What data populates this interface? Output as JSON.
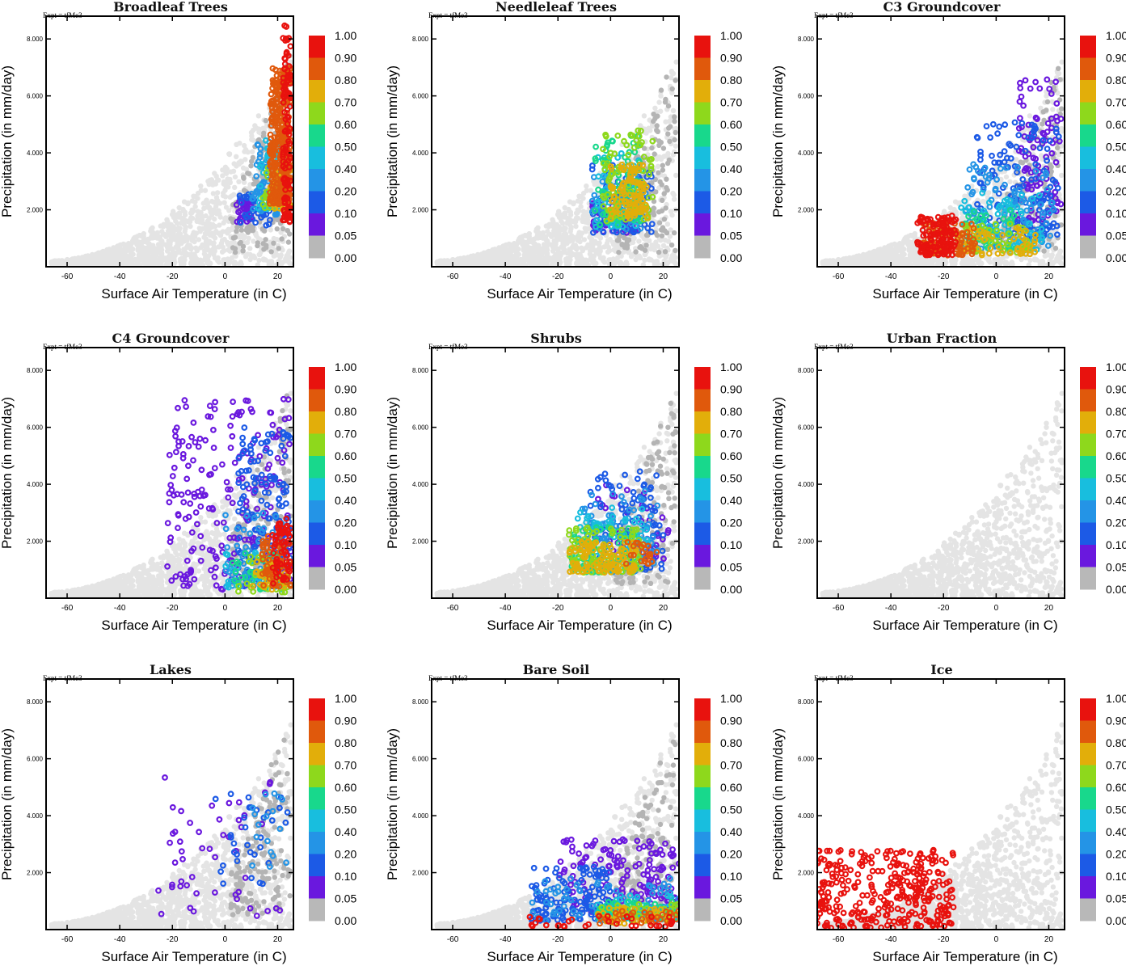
{
  "figure": {
    "expt_label": "Expt = tfMe3",
    "xlabel": "Surface Air Temperature (in C)",
    "ylabel": "Precipitation (in mm/day)",
    "x_ticks": [
      "-60",
      "-40",
      "-20",
      "0",
      "20"
    ],
    "x_tick_values": [
      -60,
      -40,
      -20,
      0,
      20
    ],
    "y_ticks": [
      "2.000",
      "4.000",
      "6.000",
      "8.000"
    ],
    "y_tick_values": [
      2,
      4,
      6,
      8
    ],
    "xlim": [
      -68,
      26
    ],
    "ylim": [
      0,
      8.8
    ],
    "colorbar": {
      "labels": [
        "1.00",
        "0.90",
        "0.80",
        "0.70",
        "0.60",
        "0.50",
        "0.40",
        "0.20",
        "0.10",
        "0.05",
        "0.00"
      ],
      "colors": [
        "#e8120e",
        "#e0590c",
        "#e2ae0a",
        "#8ed81c",
        "#18d88c",
        "#18bede",
        "#2494e6",
        "#1c5ae6",
        "#6a18de",
        "#b8b8b8"
      ],
      "background_point_color": "#e4e4e4"
    }
  },
  "chart_data": [
    {
      "type": "scatter",
      "title": "Broadleaf Trees",
      "xlabel": "Surface Air Temperature (in C)",
      "ylabel": "Precipitation (in mm/day)",
      "xlim": [
        -68,
        26
      ],
      "ylim": [
        0,
        8.8
      ],
      "clusters": [
        {
          "class": 1,
          "x": [
            22,
            25
          ],
          "y": [
            1.5,
            8.6
          ],
          "weight": 1.0
        },
        {
          "class": 2,
          "x": [
            17,
            25
          ],
          "y": [
            2.2,
            7.0
          ],
          "weight": 3.0
        },
        {
          "class": 3,
          "x": [
            17,
            25
          ],
          "y": [
            2.0,
            3.4
          ],
          "weight": 0.5
        },
        {
          "class": 4,
          "x": [
            14,
            23
          ],
          "y": [
            2.0,
            3.5
          ],
          "weight": 0.4
        },
        {
          "class": 6,
          "x": [
            12,
            22
          ],
          "y": [
            2.0,
            4.6
          ],
          "weight": 0.4
        },
        {
          "class": 7,
          "x": [
            10,
            20
          ],
          "y": [
            1.8,
            4.4
          ],
          "weight": 0.6
        },
        {
          "class": 8,
          "x": [
            5,
            18
          ],
          "y": [
            1.4,
            2.6
          ],
          "weight": 0.3
        },
        {
          "class": 9,
          "x": [
            4,
            10
          ],
          "y": [
            1.5,
            2.3
          ],
          "weight": 0.3
        }
      ]
    },
    {
      "type": "scatter",
      "title": "Needleleaf Trees",
      "xlabel": "Surface Air Temperature (in C)",
      "ylabel": "Precipitation (in mm/day)",
      "xlim": [
        -68,
        26
      ],
      "ylim": [
        0,
        8.8
      ],
      "clusters": [
        {
          "class": 3,
          "x": [
            0,
            14
          ],
          "y": [
            1.7,
            3.6
          ],
          "weight": 0.9
        },
        {
          "class": 4,
          "x": [
            -3,
            16
          ],
          "y": [
            1.6,
            4.8
          ],
          "weight": 0.8
        },
        {
          "class": 5,
          "x": [
            -6,
            12
          ],
          "y": [
            1.4,
            4.6
          ],
          "weight": 0.7
        },
        {
          "class": 6,
          "x": [
            -6,
            12
          ],
          "y": [
            1.4,
            4.0
          ],
          "weight": 0.5
        },
        {
          "class": 7,
          "x": [
            -7,
            14
          ],
          "y": [
            1.3,
            3.2
          ],
          "weight": 0.6
        },
        {
          "class": 8,
          "x": [
            -8,
            16
          ],
          "y": [
            1.2,
            3.6
          ],
          "weight": 0.7
        },
        {
          "class": 9,
          "x": [
            -8,
            10
          ],
          "y": [
            1.2,
            2.5
          ],
          "weight": 0.5
        }
      ]
    },
    {
      "type": "scatter",
      "title": "C3 Groundcover",
      "xlabel": "Surface Air Temperature (in C)",
      "ylabel": "Precipitation (in mm/day)",
      "xlim": [
        -68,
        26
      ],
      "ylim": [
        0,
        8.8
      ],
      "clusters": [
        {
          "class": 1,
          "x": [
            -30,
            -15
          ],
          "y": [
            0.4,
            1.8
          ],
          "weight": 1.2
        },
        {
          "class": 2,
          "x": [
            -28,
            -8
          ],
          "y": [
            0.4,
            1.6
          ],
          "weight": 0.8
        },
        {
          "class": 3,
          "x": [
            -15,
            15
          ],
          "y": [
            0.4,
            1.4
          ],
          "weight": 0.5
        },
        {
          "class": 4,
          "x": [
            -12,
            14
          ],
          "y": [
            0.5,
            1.6
          ],
          "weight": 0.4
        },
        {
          "class": 5,
          "x": [
            -15,
            10
          ],
          "y": [
            0.6,
            2.0
          ],
          "weight": 0.4
        },
        {
          "class": 6,
          "x": [
            -14,
            18
          ],
          "y": [
            0.6,
            2.6
          ],
          "weight": 0.6
        },
        {
          "class": 7,
          "x": [
            -12,
            22
          ],
          "y": [
            0.6,
            3.6
          ],
          "weight": 1.0
        },
        {
          "class": 8,
          "x": [
            -8,
            24
          ],
          "y": [
            1.0,
            5.2
          ],
          "weight": 1.2
        },
        {
          "class": 9,
          "x": [
            8,
            25
          ],
          "y": [
            1.6,
            6.6
          ],
          "weight": 0.9
        }
      ]
    },
    {
      "type": "scatter",
      "title": "C4 Groundcover",
      "xlabel": "Surface Air Temperature (in C)",
      "ylabel": "Precipitation (in mm/day)",
      "xlim": [
        -68,
        26
      ],
      "ylim": [
        0,
        8.8
      ],
      "clusters": [
        {
          "class": 1,
          "x": [
            18,
            25
          ],
          "y": [
            0.5,
            2.8
          ],
          "weight": 0.6
        },
        {
          "class": 2,
          "x": [
            14,
            25
          ],
          "y": [
            0.4,
            2.2
          ],
          "weight": 0.6
        },
        {
          "class": 3,
          "x": [
            10,
            24
          ],
          "y": [
            0.3,
            1.4
          ],
          "weight": 0.3
        },
        {
          "class": 4,
          "x": [
            5,
            24
          ],
          "y": [
            0.2,
            1.5
          ],
          "weight": 0.3
        },
        {
          "class": 5,
          "x": [
            2,
            22
          ],
          "y": [
            0.3,
            1.6
          ],
          "weight": 0.3
        },
        {
          "class": 6,
          "x": [
            0,
            22
          ],
          "y": [
            0.3,
            1.8
          ],
          "weight": 0.3
        },
        {
          "class": 7,
          "x": [
            0,
            25
          ],
          "y": [
            0.3,
            3.0
          ],
          "weight": 0.6
        },
        {
          "class": 8,
          "x": [
            5,
            25
          ],
          "y": [
            0.4,
            6.0
          ],
          "weight": 1.4
        },
        {
          "class": 9,
          "x": [
            -22,
            25
          ],
          "y": [
            0.3,
            7.0
          ],
          "weight": 2.0
        }
      ]
    },
    {
      "type": "scatter",
      "title": "Shrubs",
      "xlabel": "Surface Air Temperature (in C)",
      "ylabel": "Precipitation (in mm/day)",
      "xlim": [
        -68,
        26
      ],
      "ylim": [
        0,
        8.8
      ],
      "clusters": [
        {
          "class": 2,
          "x": [
            5,
            18
          ],
          "y": [
            1.2,
            2.0
          ],
          "weight": 0.2
        },
        {
          "class": 3,
          "x": [
            -16,
            10
          ],
          "y": [
            0.9,
            2.0
          ],
          "weight": 1.0
        },
        {
          "class": 4,
          "x": [
            -16,
            12
          ],
          "y": [
            0.9,
            2.5
          ],
          "weight": 0.8
        },
        {
          "class": 5,
          "x": [
            -15,
            10
          ],
          "y": [
            0.9,
            2.5
          ],
          "weight": 0.6
        },
        {
          "class": 6,
          "x": [
            -14,
            14
          ],
          "y": [
            0.9,
            3.2
          ],
          "weight": 0.6
        },
        {
          "class": 7,
          "x": [
            -12,
            18
          ],
          "y": [
            0.9,
            3.8
          ],
          "weight": 0.7
        },
        {
          "class": 8,
          "x": [
            -8,
            20
          ],
          "y": [
            1.0,
            4.6
          ],
          "weight": 0.8
        },
        {
          "class": 9,
          "x": [
            -5,
            22
          ],
          "y": [
            1.2,
            4.0
          ],
          "weight": 0.4
        }
      ]
    },
    {
      "type": "scatter",
      "title": "Urban Fraction",
      "xlabel": "Surface Air Temperature (in C)",
      "ylabel": "Precipitation (in mm/day)",
      "xlim": [
        -68,
        26
      ],
      "ylim": [
        0,
        8.8
      ],
      "clusters": []
    },
    {
      "type": "scatter",
      "title": "Lakes",
      "xlabel": "Surface Air Temperature (in C)",
      "ylabel": "Precipitation (in mm/day)",
      "xlim": [
        -68,
        26
      ],
      "ylim": [
        0,
        8.8
      ],
      "clusters": [
        {
          "class": 7,
          "x": [
            10,
            24
          ],
          "y": [
            2.0,
            4.8
          ],
          "weight": 0.15
        },
        {
          "class": 8,
          "x": [
            -5,
            24
          ],
          "y": [
            1.5,
            5.0
          ],
          "weight": 0.3
        },
        {
          "class": 9,
          "x": [
            -26,
            22
          ],
          "y": [
            0.4,
            5.4
          ],
          "weight": 0.45
        }
      ]
    },
    {
      "type": "scatter",
      "title": "Bare Soil",
      "xlabel": "Surface Air Temperature (in C)",
      "ylabel": "Precipitation (in mm/day)",
      "xlim": [
        -68,
        26
      ],
      "ylim": [
        0,
        8.8
      ],
      "clusters": [
        {
          "class": 1,
          "x": [
            -35,
            26
          ],
          "y": [
            0.1,
            0.5
          ],
          "weight": 0.3
        },
        {
          "class": 2,
          "x": [
            -5,
            26
          ],
          "y": [
            0.2,
            0.7
          ],
          "weight": 0.3
        },
        {
          "class": 3,
          "x": [
            -5,
            26
          ],
          "y": [
            0.2,
            0.8
          ],
          "weight": 0.3
        },
        {
          "class": 4,
          "x": [
            -5,
            26
          ],
          "y": [
            0.3,
            0.9
          ],
          "weight": 0.3
        },
        {
          "class": 5,
          "x": [
            -5,
            26
          ],
          "y": [
            0.3,
            1.0
          ],
          "weight": 0.4
        },
        {
          "class": 6,
          "x": [
            -5,
            26
          ],
          "y": [
            0.4,
            1.2
          ],
          "weight": 0.4
        },
        {
          "class": 7,
          "x": [
            -30,
            26
          ],
          "y": [
            0.3,
            1.8
          ],
          "weight": 0.7
        },
        {
          "class": 8,
          "x": [
            -30,
            0
          ],
          "y": [
            0.3,
            2.2
          ],
          "weight": 1.2
        },
        {
          "class": 9,
          "x": [
            -20,
            26
          ],
          "y": [
            0.6,
            3.2
          ],
          "weight": 1.4
        }
      ]
    },
    {
      "type": "scatter",
      "title": "Ice",
      "xlabel": "Surface Air Temperature (in C)",
      "ylabel": "Precipitation (in mm/day)",
      "xlim": [
        -68,
        26
      ],
      "ylim": [
        0,
        8.8
      ],
      "clusters": [
        {
          "class": 1,
          "x": [
            -68,
            -16
          ],
          "y": [
            0.05,
            2.8
          ],
          "weight": 3.0
        }
      ]
    }
  ]
}
